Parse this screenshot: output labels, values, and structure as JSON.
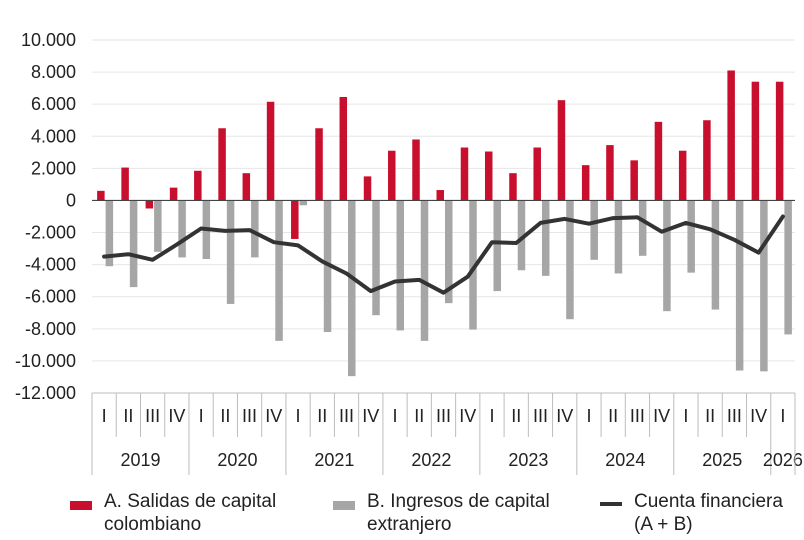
{
  "chart_data": {
    "type": "bar+line",
    "title": "",
    "xlabel": "",
    "ylabel": "",
    "ylim": [
      -12000,
      10000
    ],
    "yticks": [
      10000,
      8000,
      6000,
      4000,
      2000,
      0,
      -2000,
      -4000,
      -6000,
      -8000,
      -10000,
      -12000
    ],
    "ytick_labels": [
      "10.000",
      "8.000",
      "6.000",
      "4.000",
      "2.000",
      "0",
      "-2.000",
      "-4.000",
      "-6.000",
      "-8.000",
      "-10.000",
      "-12.000"
    ],
    "quarters": [
      "I",
      "II",
      "III",
      "IV",
      "I",
      "II",
      "III",
      "IV",
      "I",
      "II",
      "III",
      "IV",
      "I",
      "II",
      "III",
      "IV",
      "I",
      "II",
      "III",
      "IV",
      "I",
      "II",
      "III",
      "IV",
      "I",
      "II",
      "III",
      "IV",
      "I"
    ],
    "years": [
      {
        "label": "2019",
        "count": 4
      },
      {
        "label": "2020",
        "count": 4
      },
      {
        "label": "2021",
        "count": 4
      },
      {
        "label": "2022",
        "count": 4
      },
      {
        "label": "2023",
        "count": 4
      },
      {
        "label": "2024",
        "count": 4
      },
      {
        "label": "2025",
        "count": 4
      },
      {
        "label": "2026",
        "count": 1
      }
    ],
    "series": [
      {
        "name": "A. Salidas de capital colombiano",
        "type": "bar",
        "color": "#c8102e",
        "values": [
          600,
          2050,
          -500,
          800,
          1850,
          4500,
          1700,
          6150,
          -2400,
          4500,
          6450,
          1500,
          3100,
          3800,
          650,
          3300,
          3050,
          1700,
          3300,
          6250,
          2200,
          3450,
          2500,
          4900,
          3100,
          5000,
          8100,
          7400,
          7400
        ]
      },
      {
        "name": "B. Ingresos de capital extranjero",
        "type": "bar",
        "color": "#a6a6a6",
        "values": [
          -4100,
          -5400,
          -3200,
          -3550,
          -3650,
          -6450,
          -3550,
          -8750,
          -300,
          -8200,
          -10950,
          -7150,
          -8100,
          -8750,
          -6400,
          -8050,
          -5650,
          -4350,
          -4700,
          -7400,
          -3700,
          -4550,
          -3450,
          -6900,
          -4500,
          -6800,
          -10600,
          -10650,
          -8350
        ]
      },
      {
        "name": "Cuenta financiera (A + B)",
        "type": "line",
        "color": "#333333",
        "values": [
          -3500,
          -3350,
          -3700,
          -2750,
          -1750,
          -1900,
          -1850,
          -2600,
          -2800,
          -3800,
          -4550,
          -5650,
          -5050,
          -4950,
          -5750,
          -4750,
          -2600,
          -2650,
          -1400,
          -1150,
          -1450,
          -1100,
          -1050,
          -1950,
          -1400,
          -1800,
          -2450,
          -3250,
          -1000
        ]
      }
    ],
    "legend_position": "bottom",
    "grid": true
  },
  "legend": {
    "a_line1": "A. Salidas de capital",
    "a_line2": "colombiano",
    "b_line1": "B. Ingresos de capital",
    "b_line2": "extranjero",
    "c_line1": "Cuenta financiera",
    "c_line2": "(A + B)"
  }
}
